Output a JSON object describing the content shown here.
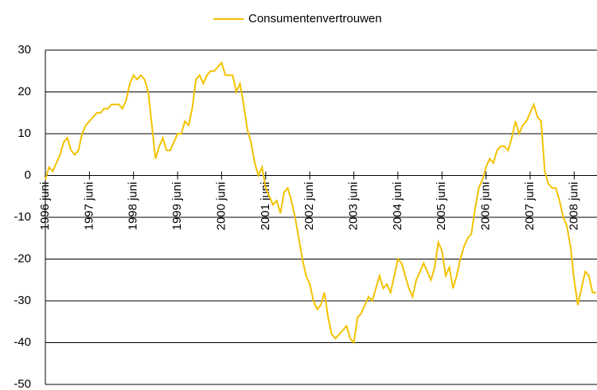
{
  "chart_data": {
    "type": "line",
    "categories": [
      "1996 juni",
      null,
      null,
      null,
      null,
      null,
      null,
      null,
      null,
      null,
      null,
      null,
      "1997 juni",
      null,
      null,
      null,
      null,
      null,
      null,
      null,
      null,
      null,
      null,
      null,
      "1998 juni",
      null,
      null,
      null,
      null,
      null,
      null,
      null,
      null,
      null,
      null,
      null,
      "1999 juni",
      null,
      null,
      null,
      null,
      null,
      null,
      null,
      null,
      null,
      null,
      null,
      "2000 juni",
      null,
      null,
      null,
      null,
      null,
      null,
      null,
      null,
      null,
      null,
      null,
      "2001 juni",
      null,
      null,
      null,
      null,
      null,
      null,
      null,
      null,
      null,
      null,
      null,
      "2002 juni",
      null,
      null,
      null,
      null,
      null,
      null,
      null,
      null,
      null,
      null,
      null,
      "2003 juni",
      null,
      null,
      null,
      null,
      null,
      null,
      null,
      null,
      null,
      null,
      null,
      "2004 juni",
      null,
      null,
      null,
      null,
      null,
      null,
      null,
      null,
      null,
      null,
      null,
      "2005 juni",
      null,
      null,
      null,
      null,
      null,
      null,
      null,
      null,
      null,
      null,
      null,
      "2006 juni",
      null,
      null,
      null,
      null,
      null,
      null,
      null,
      null,
      null,
      null,
      null,
      "2007 juni",
      null,
      null,
      null,
      null,
      null,
      null,
      null,
      null,
      null,
      null,
      null,
      "2008 juni",
      null,
      null,
      null,
      null,
      null,
      null
    ],
    "series": [
      {
        "name": "Consumentenvertrouwen",
        "color": "#f2c200",
        "values": [
          -1,
          2,
          1,
          3,
          5,
          8,
          9,
          6,
          5,
          6,
          10,
          12,
          13,
          14,
          15,
          15,
          16,
          16,
          17,
          17,
          17,
          16,
          18,
          22,
          24,
          23,
          24,
          23,
          20,
          12,
          4,
          7,
          9,
          6,
          6,
          8,
          10,
          10,
          13,
          12,
          16,
          23,
          24,
          22,
          24,
          25,
          25,
          26,
          27,
          24,
          24,
          24,
          20,
          22,
          17,
          11,
          8,
          3,
          0,
          2,
          -3,
          -5,
          -7,
          -6,
          -9,
          -4,
          -3,
          -6,
          -10,
          -15,
          -20,
          -24,
          -26,
          -30,
          -32,
          -31,
          -28,
          -34,
          -38,
          -39,
          -38,
          -37,
          -36,
          -39,
          -40,
          -34,
          -33,
          -31,
          -29,
          -30,
          -27,
          -24,
          -27,
          -26,
          -28,
          -24,
          -20,
          -21,
          -24,
          -27,
          -29,
          -25,
          -23,
          -21,
          -23,
          -25,
          -22,
          -16,
          -18,
          -24,
          -22,
          -27,
          -24,
          -20,
          -17,
          -15,
          -14,
          -8,
          -3,
          -1,
          2,
          4,
          3,
          6,
          7,
          7,
          6,
          9,
          13,
          10,
          12,
          13,
          15,
          17,
          14,
          13,
          1,
          -2,
          -3,
          -3,
          -6,
          -10,
          -12,
          -17,
          -25,
          -31,
          -27,
          -23,
          -24,
          -28,
          -28
        ]
      }
    ],
    "ylim": [
      -50,
      30
    ],
    "yticks": [
      -50,
      -40,
      -30,
      -20,
      -10,
      0,
      10,
      20,
      30
    ],
    "grid": true,
    "legend": "top"
  }
}
